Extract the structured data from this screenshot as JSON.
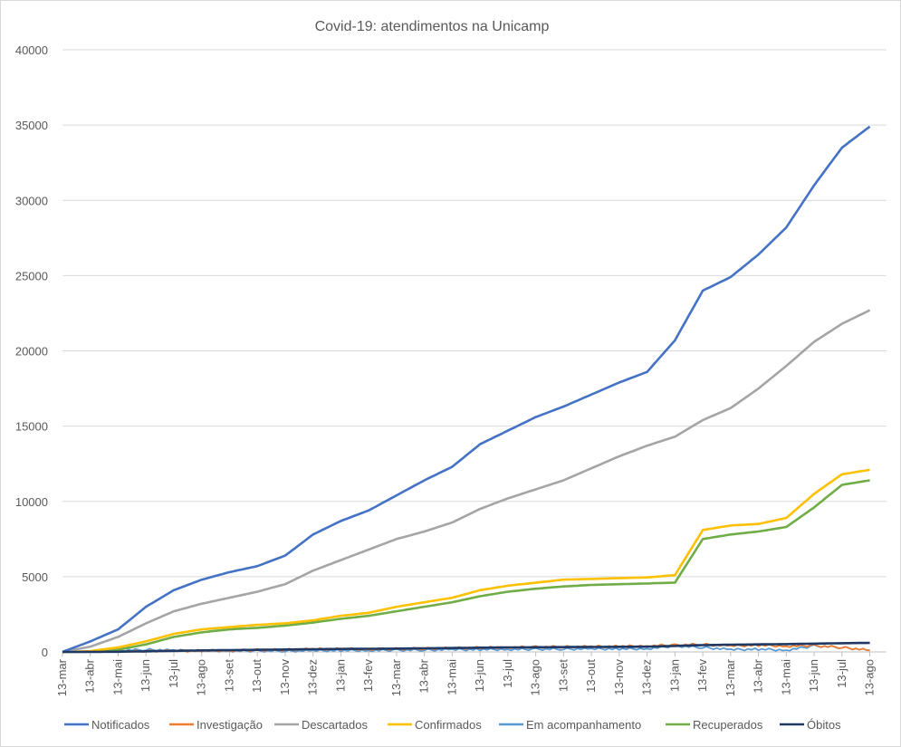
{
  "chart_data": {
    "type": "line",
    "title": "Covid-19: atendimentos  na Unicamp",
    "xlabel": "",
    "ylabel": "",
    "ylim": [
      0,
      40000
    ],
    "yticks": [
      "0",
      "5000",
      "10000",
      "15000",
      "20000",
      "25000",
      "30000",
      "35000",
      "40000"
    ],
    "grid": "horizontal",
    "legend_position": "bottom",
    "categories": [
      "13-mar",
      "13-abr",
      "13-mai",
      "13-jun",
      "13-jul",
      "13-ago",
      "13-set",
      "13-out",
      "13-nov",
      "13-dez",
      "13-jan",
      "13-fev",
      "13-mar",
      "13-abr",
      "13-mai",
      "13-jun",
      "13-jul",
      "13-ago",
      "13-set",
      "13-out",
      "13-nov",
      "13-dez",
      "13-jan",
      "13-fev",
      "13-mar",
      "13-abr",
      "13-mai",
      "13-jun",
      "13-jul",
      "13-ago"
    ],
    "series": [
      {
        "name": "Notificados",
        "color": "#4472c4",
        "values": [
          0,
          700,
          1500,
          3000,
          4100,
          4800,
          5300,
          5700,
          6400,
          7800,
          8700,
          9400,
          10400,
          11400,
          12300,
          13800,
          14700,
          15600,
          16300,
          17100,
          17900,
          18600,
          20700,
          24000,
          24900,
          26400,
          28200,
          31000,
          33500,
          34900
        ]
      },
      {
        "name": "Investigação",
        "color": "#ed7d31",
        "values": [
          0,
          20,
          30,
          40,
          60,
          80,
          100,
          120,
          150,
          180,
          200,
          180,
          200,
          220,
          250,
          280,
          300,
          320,
          340,
          350,
          370,
          400,
          450,
          500,
          400,
          450,
          380,
          420,
          300,
          100
        ]
      },
      {
        "name": "Descartados",
        "color": "#a5a5a5",
        "values": [
          0,
          350,
          1000,
          1900,
          2700,
          3200,
          3600,
          4000,
          4500,
          5400,
          6100,
          6800,
          7500,
          8000,
          8600,
          9500,
          10200,
          10800,
          11400,
          12200,
          13000,
          13700,
          14300,
          15400,
          16200,
          17500,
          19000,
          20600,
          21800,
          22700
        ]
      },
      {
        "name": "Confirmados",
        "color": "#ffc000",
        "values": [
          0,
          50,
          300,
          700,
          1200,
          1500,
          1650,
          1800,
          1900,
          2100,
          2400,
          2600,
          3000,
          3300,
          3600,
          4100,
          4400,
          4600,
          4800,
          4850,
          4900,
          4950,
          5100,
          8100,
          8400,
          8500,
          8900,
          10500,
          11800,
          12100
        ]
      },
      {
        "name": "Em acompanhamento",
        "color": "#5b9bd5",
        "values": [
          0,
          30,
          100,
          150,
          100,
          80,
          70,
          60,
          60,
          80,
          100,
          100,
          120,
          130,
          150,
          160,
          170,
          180,
          190,
          200,
          200,
          210,
          400,
          300,
          150,
          180,
          120,
          400,
          300,
          100
        ]
      },
      {
        "name": "Recuperados",
        "color": "#70ad47",
        "values": [
          0,
          20,
          150,
          500,
          1000,
          1300,
          1500,
          1600,
          1750,
          1950,
          2200,
          2400,
          2700,
          3000,
          3300,
          3700,
          4000,
          4200,
          4350,
          4450,
          4500,
          4550,
          4600,
          7500,
          7800,
          8000,
          8300,
          9600,
          11100,
          11400
        ]
      },
      {
        "name": "Óbitos",
        "color": "#1f3864",
        "values": [
          0,
          5,
          15,
          40,
          70,
          100,
          120,
          140,
          160,
          180,
          200,
          210,
          220,
          240,
          260,
          280,
          300,
          310,
          320,
          330,
          340,
          350,
          400,
          450,
          480,
          500,
          520,
          550,
          580,
          600
        ]
      }
    ]
  }
}
